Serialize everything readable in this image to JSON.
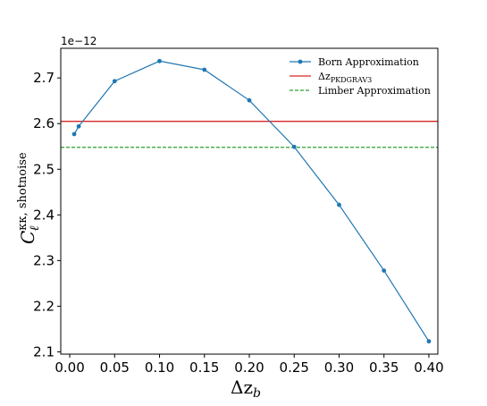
{
  "chart_data": {
    "type": "line",
    "xlabel": "Δz",
    "xlabel_sub": "b",
    "ylabel": "C",
    "ylabel_sub": "ℓ",
    "ylabel_sup": "κκ, shotnoise",
    "y_offset_label": "1e−12",
    "xlim": [
      -0.01,
      0.41
    ],
    "ylim": [
      2.095,
      2.765
    ],
    "x_ticks": [
      0.0,
      0.05,
      0.1,
      0.15,
      0.2,
      0.25,
      0.3,
      0.35,
      0.4
    ],
    "x_tick_labels": [
      "0.00",
      "0.05",
      "0.10",
      "0.15",
      "0.20",
      "0.25",
      "0.30",
      "0.35",
      "0.40"
    ],
    "y_ticks": [
      2.1,
      2.2,
      2.3,
      2.4,
      2.5,
      2.6,
      2.7
    ],
    "y_tick_labels": [
      "2.1",
      "2.2",
      "2.3",
      "2.4",
      "2.5",
      "2.6",
      "2.7"
    ],
    "grid": false,
    "legend_position": "top-right",
    "series": [
      {
        "name": "Born Approximation",
        "kind": "line-markers",
        "color": "#1f77b4",
        "x": [
          0.005,
          0.01,
          0.05,
          0.1,
          0.15,
          0.2,
          0.25,
          0.3,
          0.35,
          0.4
        ],
        "y": [
          2.577,
          2.594,
          2.693,
          2.737,
          2.718,
          2.651,
          2.549,
          2.422,
          2.278,
          2.123
        ]
      }
    ],
    "hlines": [
      {
        "name": "Δz",
        "name_sub": "PKDGRAV3",
        "y": 2.605,
        "color": "#d62728",
        "dash": "solid"
      },
      {
        "name": "Limber Approximation",
        "y": 2.548,
        "color": "#2ca02c",
        "dash": "dashed"
      }
    ]
  }
}
